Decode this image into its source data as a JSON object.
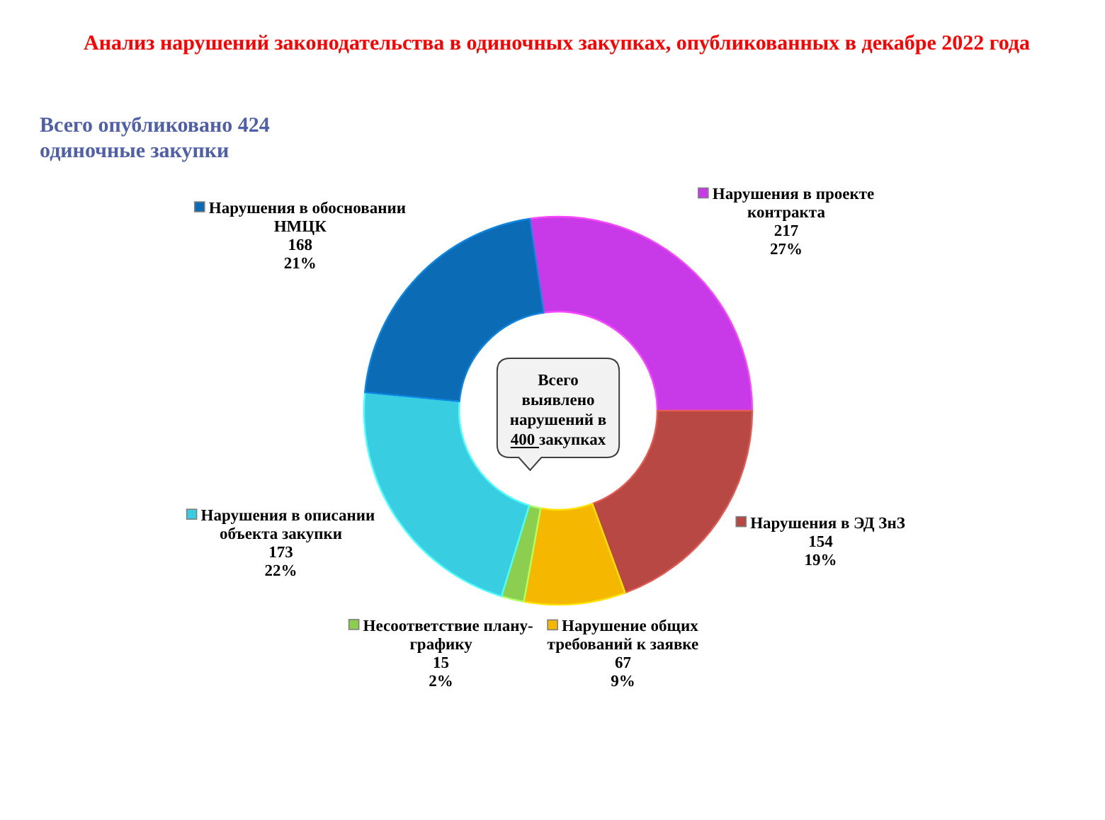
{
  "chart_data": {
    "type": "donut",
    "title": "Анализ нарушений законодательства в одиночных закупках, опубликованных в декабре 2022 года",
    "subtitle": "Всего опубликовано 424 одиночные закупки",
    "categories": [
      "Нарушения в проекте контракта",
      "Нарушения в ЭД ЗнЗ",
      "Нарушение общих требований к заявке",
      "Несоответствие плану-графику",
      "Нарушения в описании объекта закупки",
      "Нарушения в обосновании НМЦК"
    ],
    "values": [
      217,
      154,
      67,
      15,
      173,
      168
    ],
    "colors": [
      "#c83ae8",
      "#b84843",
      "#f5b700",
      "#8ccf50",
      "#39cde2",
      "#0b6cb5"
    ],
    "value_labels": [
      "217\n27%",
      "154\n19%",
      "67\n9%",
      "15\n2%",
      "173\n22%",
      "168\n21%"
    ],
    "legend": true,
    "annotations": [
      "Всего выявлено нарушений в 400 закупках"
    ]
  }
}
